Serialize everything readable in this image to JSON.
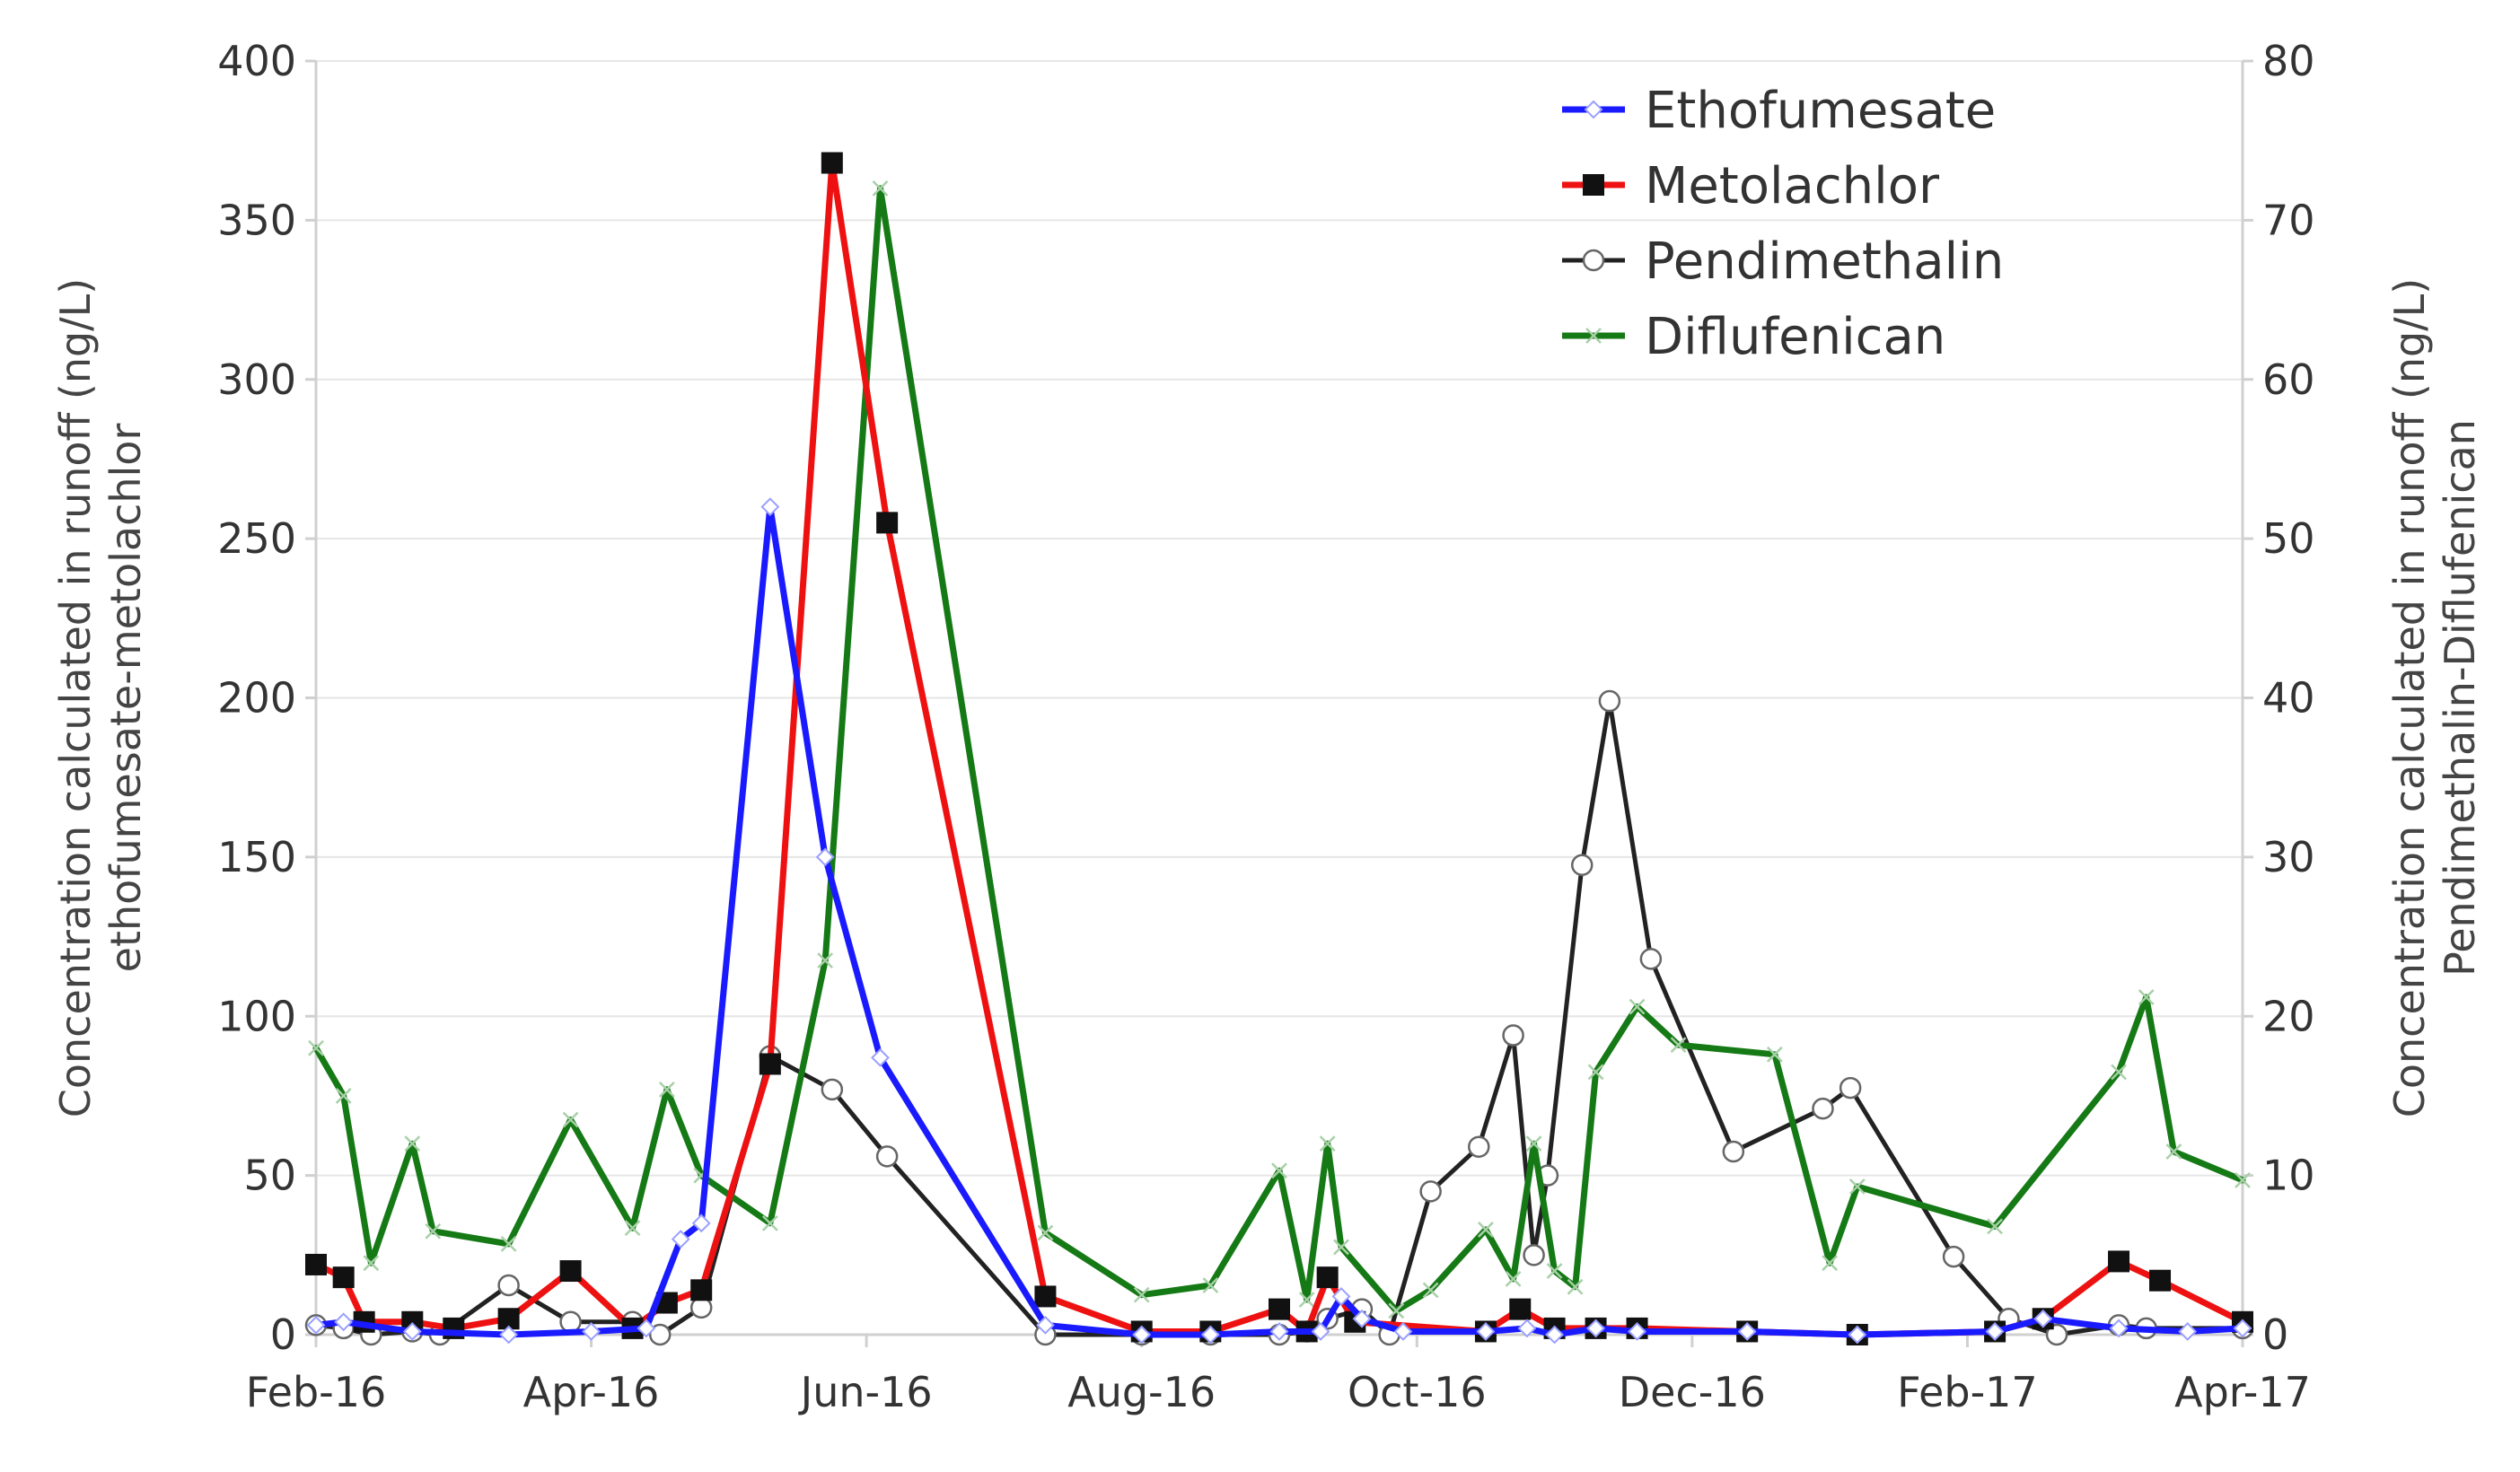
{
  "chart_data": {
    "type": "line",
    "title": "",
    "xlabel": "",
    "ylabel_left": [
      "Concentration calculated in runoff (ng/L)",
      "ethofumesate-metolachlor"
    ],
    "ylabel_right": [
      "Concentration calculated in runoff (ng/L)",
      "Pendimethalin-Diflufenican"
    ],
    "x_range": [
      0,
      14
    ],
    "x_ticks": [
      {
        "value": 0,
        "label": "Feb-16"
      },
      {
        "value": 2,
        "label": "Apr-16"
      },
      {
        "value": 4,
        "label": "Jun-16"
      },
      {
        "value": 6,
        "label": "Aug-16"
      },
      {
        "value": 8,
        "label": "Oct-16"
      },
      {
        "value": 10,
        "label": "Dec-16"
      },
      {
        "value": 12,
        "label": "Feb-17"
      },
      {
        "value": 14,
        "label": "Apr-17"
      }
    ],
    "ylim_left": [
      0,
      400
    ],
    "yticks_left": [
      "0",
      "50",
      "100",
      "150",
      "200",
      "250",
      "300",
      "350",
      "400"
    ],
    "ylim_right": [
      0,
      80
    ],
    "yticks_right": [
      "0",
      "10",
      "20",
      "30",
      "40",
      "50",
      "60",
      "70",
      "80"
    ],
    "grid": true,
    "legend_position": "top-right",
    "series": [
      {
        "name": "Ethofumesate",
        "axis": "left",
        "color": "#1a1aff",
        "marker": "diamond",
        "points": [
          [
            0.0,
            3
          ],
          [
            0.2,
            4
          ],
          [
            0.7,
            1
          ],
          [
            1.4,
            0
          ],
          [
            2.0,
            1
          ],
          [
            2.4,
            2
          ],
          [
            2.65,
            30
          ],
          [
            2.8,
            35
          ],
          [
            3.3,
            260
          ],
          [
            3.7,
            150
          ],
          [
            4.1,
            87
          ],
          [
            5.3,
            3
          ],
          [
            6.0,
            0
          ],
          [
            6.5,
            0
          ],
          [
            7.0,
            1
          ],
          [
            7.3,
            1
          ],
          [
            7.45,
            12
          ],
          [
            7.6,
            5
          ],
          [
            7.9,
            1
          ],
          [
            8.5,
            1
          ],
          [
            8.8,
            2
          ],
          [
            9.0,
            0
          ],
          [
            9.3,
            2
          ],
          [
            9.6,
            1
          ],
          [
            10.4,
            1
          ],
          [
            11.2,
            0
          ],
          [
            12.2,
            1
          ],
          [
            12.55,
            5
          ],
          [
            13.1,
            2
          ],
          [
            13.6,
            1
          ],
          [
            14.0,
            2
          ]
        ]
      },
      {
        "name": "Metolachlor",
        "axis": "left",
        "color": "#ee1111",
        "marker": "square",
        "points": [
          [
            0.0,
            22
          ],
          [
            0.2,
            18
          ],
          [
            0.35,
            4
          ],
          [
            0.7,
            4
          ],
          [
            1.0,
            2
          ],
          [
            1.4,
            5
          ],
          [
            1.85,
            20
          ],
          [
            2.3,
            2
          ],
          [
            2.55,
            10
          ],
          [
            2.8,
            14
          ],
          [
            3.3,
            85
          ],
          [
            3.75,
            368
          ],
          [
            4.15,
            255
          ],
          [
            5.3,
            12
          ],
          [
            6.0,
            1
          ],
          [
            6.5,
            1
          ],
          [
            7.0,
            8
          ],
          [
            7.2,
            1
          ],
          [
            7.35,
            18
          ],
          [
            7.55,
            4
          ],
          [
            8.5,
            1
          ],
          [
            8.75,
            8
          ],
          [
            9.0,
            2
          ],
          [
            9.3,
            2
          ],
          [
            9.6,
            2
          ],
          [
            10.4,
            1
          ],
          [
            11.2,
            0
          ],
          [
            12.2,
            1
          ],
          [
            12.55,
            5
          ],
          [
            13.1,
            23
          ],
          [
            13.4,
            17
          ],
          [
            14.0,
            4
          ]
        ]
      },
      {
        "name": "Pendimethalin",
        "axis": "right",
        "color": "#222222",
        "marker": "circle",
        "points": [
          [
            0.0,
            0.6
          ],
          [
            0.2,
            0.4
          ],
          [
            0.4,
            0.0
          ],
          [
            0.7,
            0.2
          ],
          [
            0.9,
            0.0
          ],
          [
            1.4,
            3.1
          ],
          [
            1.85,
            0.8
          ],
          [
            2.3,
            0.8
          ],
          [
            2.5,
            0.0
          ],
          [
            2.8,
            1.7
          ],
          [
            3.3,
            17.5
          ],
          [
            3.75,
            15.4
          ],
          [
            4.15,
            11.2
          ],
          [
            5.3,
            0.0
          ],
          [
            6.0,
            0.0
          ],
          [
            6.5,
            0.0
          ],
          [
            7.0,
            0.0
          ],
          [
            7.2,
            0.2
          ],
          [
            7.35,
            1.0
          ],
          [
            7.6,
            1.6
          ],
          [
            7.8,
            0.0
          ],
          [
            8.1,
            9.0
          ],
          [
            8.45,
            11.8
          ],
          [
            8.7,
            18.8
          ],
          [
            8.85,
            5.0
          ],
          [
            8.95,
            10.0
          ],
          [
            9.2,
            29.5
          ],
          [
            9.4,
            39.8
          ],
          [
            9.7,
            23.6
          ],
          [
            10.3,
            11.5
          ],
          [
            10.95,
            14.2
          ],
          [
            11.15,
            15.5
          ],
          [
            11.9,
            4.9
          ],
          [
            12.3,
            1.0
          ],
          [
            12.65,
            0.0
          ],
          [
            13.1,
            0.6
          ],
          [
            13.3,
            0.4
          ],
          [
            14.0,
            0.4
          ]
        ]
      },
      {
        "name": "Diflufenican",
        "axis": "right",
        "color": "#157a15",
        "marker": "x",
        "points": [
          [
            0.0,
            18.0
          ],
          [
            0.2,
            15.0
          ],
          [
            0.4,
            4.5
          ],
          [
            0.7,
            12.0
          ],
          [
            0.85,
            6.5
          ],
          [
            1.4,
            5.7
          ],
          [
            1.85,
            13.5
          ],
          [
            2.3,
            6.7
          ],
          [
            2.55,
            15.4
          ],
          [
            2.8,
            10.0
          ],
          [
            3.3,
            7.0
          ],
          [
            3.7,
            23.5
          ],
          [
            4.1,
            72.0
          ],
          [
            5.3,
            6.4
          ],
          [
            6.0,
            2.5
          ],
          [
            6.5,
            3.1
          ],
          [
            7.0,
            10.3
          ],
          [
            7.2,
            2.2
          ],
          [
            7.35,
            12.0
          ],
          [
            7.45,
            5.5
          ],
          [
            7.85,
            1.5
          ],
          [
            8.1,
            2.8
          ],
          [
            8.5,
            6.6
          ],
          [
            8.7,
            3.5
          ],
          [
            8.85,
            12.0
          ],
          [
            9.0,
            4.0
          ],
          [
            9.15,
            3.0
          ],
          [
            9.3,
            16.5
          ],
          [
            9.6,
            20.6
          ],
          [
            9.9,
            18.2
          ],
          [
            10.6,
            17.6
          ],
          [
            11.0,
            4.5
          ],
          [
            11.2,
            9.3
          ],
          [
            12.2,
            6.8
          ],
          [
            13.1,
            16.5
          ],
          [
            13.3,
            21.2
          ],
          [
            13.5,
            11.5
          ],
          [
            14.0,
            9.7
          ]
        ]
      }
    ]
  }
}
